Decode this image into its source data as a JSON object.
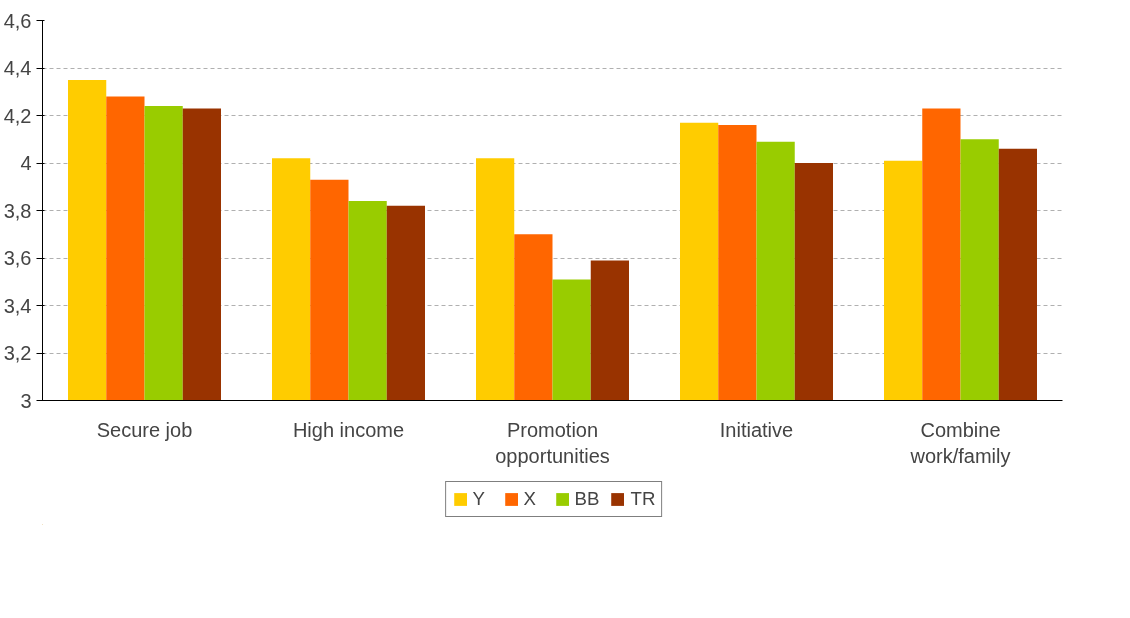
{
  "chart_data": {
    "type": "bar",
    "categories": [
      "Secure job",
      "High income",
      "Promotion\nopportunities",
      "Initiative",
      "Combine\nwork/family"
    ],
    "series": [
      {
        "name": "Y",
        "color": "#ffcc00",
        "values": [
          4.35,
          4.02,
          4.02,
          4.17,
          4.01
        ]
      },
      {
        "name": "X",
        "color": "#ff6600",
        "values": [
          4.28,
          3.93,
          3.7,
          4.16,
          4.23
        ]
      },
      {
        "name": "BB",
        "color": "#99cc00",
        "values": [
          4.24,
          3.84,
          3.51,
          4.09,
          4.1
        ]
      },
      {
        "name": "TR",
        "color": "#993300",
        "values": [
          4.23,
          3.82,
          3.59,
          4.0,
          4.06
        ]
      }
    ],
    "ylim": [
      3,
      4.6
    ],
    "yticks": [
      3,
      {
        "value": 3.2,
        "label": "3,2"
      },
      {
        "value": 3.4,
        "label": "3,4"
      },
      {
        "value": 3.6,
        "label": "3,6"
      },
      {
        "value": 3.8,
        "label": "3,8"
      },
      4,
      {
        "value": 4.2,
        "label": "4,2"
      },
      {
        "value": 4.4,
        "label": "4,4"
      },
      {
        "value": 4.6,
        "label": "4,6"
      }
    ],
    "grid": "y",
    "legend": "bottom"
  }
}
